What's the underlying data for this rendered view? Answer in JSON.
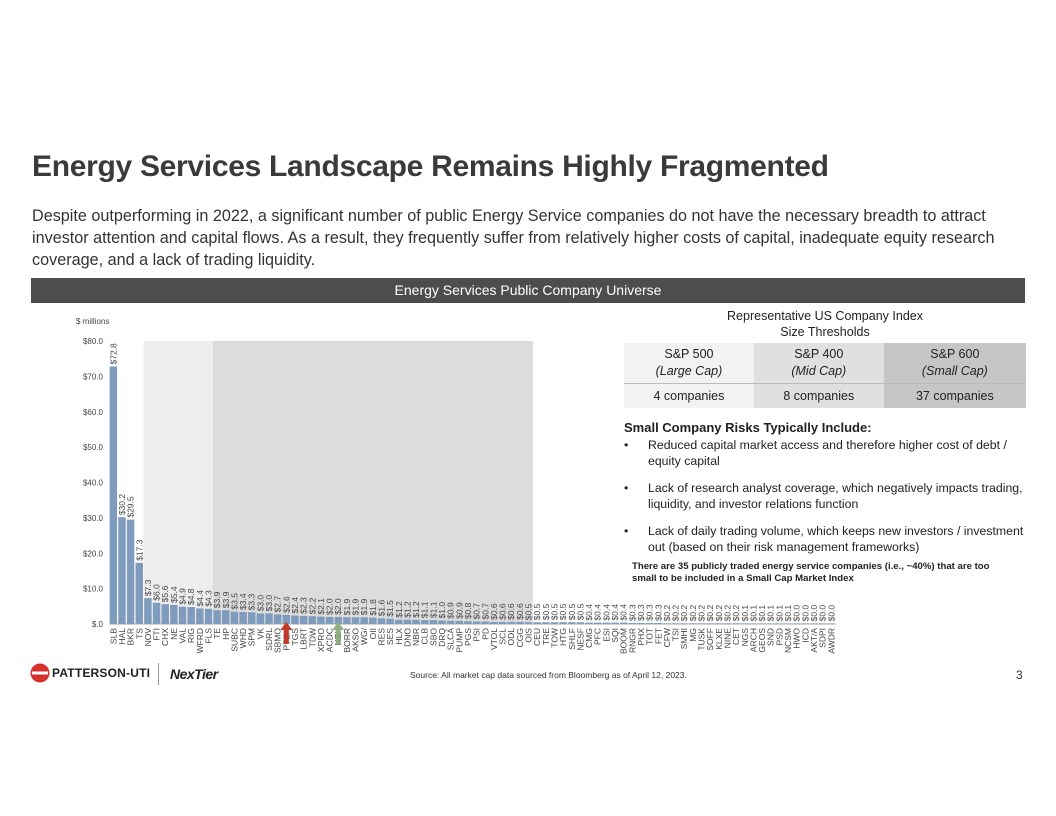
{
  "title": "Energy Services Landscape Remains Highly Fragmented",
  "intro": "Despite outperforming in 2022, a significant number of public Energy Service companies do not have the necessary breadth to attract investor attention and capital flows.  As a result, they frequently suffer from relatively higher costs of capital, inadequate equity research coverage, and a lack of trading liquidity.",
  "banner": "Energy Services Public Company Universe",
  "index_table": {
    "title_line1": "Representative US Company Index",
    "title_line2": "Size Thresholds",
    "cols": [
      {
        "name": "S&P 500",
        "sub": "(Large Cap)",
        "count": "4 companies"
      },
      {
        "name": "S&P 400",
        "sub": "(Mid Cap)",
        "count": "8 companies"
      },
      {
        "name": "S&P 600",
        "sub": "(Small Cap)",
        "count": "37 companies"
      }
    ]
  },
  "risks": {
    "heading": "Small Company Risks Typically Include:",
    "items": [
      "Reduced capital market access and therefore higher cost of debt / equity capital",
      "Lack of research analyst coverage, which negatively impacts trading, liquidity, and investor relations function",
      "Lack of daily trading volume, which keeps new investors / investment out (based on their risk management frameworks)"
    ],
    "note": "There are 35 publicly traded energy service companies (i.e., ~40%) that are too small to be included in a Small Cap Market Index"
  },
  "footer": {
    "source": "Source:  All market cap data sourced from Bloomberg as of April 12, 2023.",
    "page": "3",
    "logo1": "PATTERSON-UTI",
    "logo2": "NexTier"
  },
  "chart_data": {
    "type": "bar",
    "ylabel": "$ millions",
    "ylim": [
      0,
      80
    ],
    "yticks": [
      "$.0",
      "$10.0",
      "$20.0",
      "$30.0",
      "$40.0",
      "$50.0",
      "$60.0",
      "$70.0",
      "$80.0"
    ],
    "bar_color": "#7f9bbd",
    "categories": [
      "SLB",
      "HAL",
      "BKR",
      "TS",
      "NOV",
      "FTI",
      "CHX",
      "NE",
      "VAL",
      "RIG",
      "WFRD",
      "FLS",
      "TE",
      "HP",
      "SUBC",
      "WHD",
      "SPM",
      "VK",
      "SDRL",
      "SBMO",
      "PTEN",
      "TGS",
      "LBRT",
      "TDW",
      "XPRO",
      "ACDC",
      "NEX",
      "BORR",
      "AKSO",
      "WG/",
      "OII",
      "RES",
      "SES",
      "HLX",
      "DNO",
      "NBR",
      "CLB",
      "SBO",
      "DRQ",
      "SLCA",
      "PUMP",
      "PGS",
      "PSI",
      "PD",
      "VTOL",
      "SCL",
      "ODL",
      "CGG",
      "OIS",
      "CEU",
      "TRE",
      "TOW",
      "HTG",
      "SHLF",
      "NESF",
      "CMG",
      "PFC",
      "ESI",
      "SQI",
      "BOOM",
      "RNGR",
      "PHX",
      "TOT",
      "FET",
      "CFW",
      "TSI",
      "SMHI",
      "MG",
      "TUSK",
      "SOFF",
      "KLXE",
      "NINE",
      "CET",
      "NGS",
      "ARCH",
      "GEOS",
      "SND",
      "PSD",
      "NCSM",
      "HWO",
      "ICD",
      "AKT/A",
      "SDPI",
      "AWDR"
    ],
    "values": [
      72.8,
      30.2,
      29.5,
      17.3,
      7.3,
      6.0,
      5.6,
      5.4,
      4.9,
      4.8,
      4.4,
      4.3,
      3.9,
      3.9,
      3.5,
      3.4,
      3.3,
      3.0,
      3.0,
      2.7,
      2.6,
      2.4,
      2.3,
      2.2,
      2.1,
      2.0,
      2.0,
      1.9,
      1.9,
      1.9,
      1.8,
      1.6,
      1.5,
      1.2,
      1.2,
      1.2,
      1.1,
      1.1,
      1.0,
      0.9,
      0.9,
      0.8,
      0.7,
      0.7,
      0.6,
      0.6,
      0.6,
      0.6,
      0.5,
      0.5,
      0.5,
      0.5,
      0.5,
      0.5,
      0.5,
      0.4,
      0.4,
      0.4,
      0.4,
      0.4,
      0.3,
      0.3,
      0.3,
      0.3,
      0.2,
      0.2,
      0.2,
      0.2,
      0.2,
      0.2,
      0.2,
      0.2,
      0.2,
      0.1,
      0.1,
      0.1,
      0.1,
      0.1,
      0.1,
      0.0,
      0.0,
      0.0,
      0.0,
      0.0
    ],
    "value_labels": [
      "$72.8",
      "$30.2",
      "$29.5",
      "$17.3",
      "$7.3",
      "$6.0",
      "$5.6",
      "$5.4",
      "$4.9",
      "$4.8",
      "$4.4",
      "$4.3",
      "$3.9",
      "$3.9",
      "$3.5",
      "$3.4",
      "$3.3",
      "$3.0",
      "$3.0",
      "$2.7",
      "$2.6",
      "$2.4",
      "$2.3",
      "$2.2",
      "$2.1",
      "$2.0",
      "$2.0",
      "$1.9",
      "$1.9",
      "$1.9",
      "$1.8",
      "$1.6",
      "$1.5",
      "$1.2",
      "$1.2",
      "$1.2",
      "$1.1",
      "$1.1",
      "$1.0",
      "$0.9",
      "$0.9",
      "$0.8",
      "$0.7",
      "$0.7",
      "$0.6",
      "$0.6",
      "$0.6",
      "$0.6",
      "$0.5",
      "$0.5",
      "$0.5",
      "$0.5",
      "$0.5",
      "$0.5",
      "$0.5",
      "$0.4",
      "$0.4",
      "$0.4",
      "$0.4",
      "$0.4",
      "$0.3",
      "$0.3",
      "$0.3",
      "$0.3",
      "$0.2",
      "$0.2",
      "$0.2",
      "$0.2",
      "$0.2",
      "$0.2",
      "$0.2",
      "$0.2",
      "$0.2",
      "$0.1",
      "$0.1",
      "$0.1",
      "$0.1",
      "$0.1",
      "$0.1",
      "$0.0",
      "$0.0",
      "$0.0",
      "$0.0",
      "$0.0"
    ],
    "shaded_bands": [
      {
        "label": "S&P 500",
        "from": 0,
        "to": 3,
        "color": "#ffffff"
      },
      {
        "label": "S&P 400",
        "from": 4,
        "to": 11,
        "color": "#eeeeee"
      },
      {
        "label": "S&P 600",
        "from": 12,
        "to": 48,
        "color": "#dcdcdc"
      }
    ],
    "markers": [
      {
        "category": "PTEN",
        "color": "#c0392b",
        "direction": "up"
      },
      {
        "category": "NEX",
        "color": "#8fae82",
        "direction": "up"
      }
    ]
  }
}
